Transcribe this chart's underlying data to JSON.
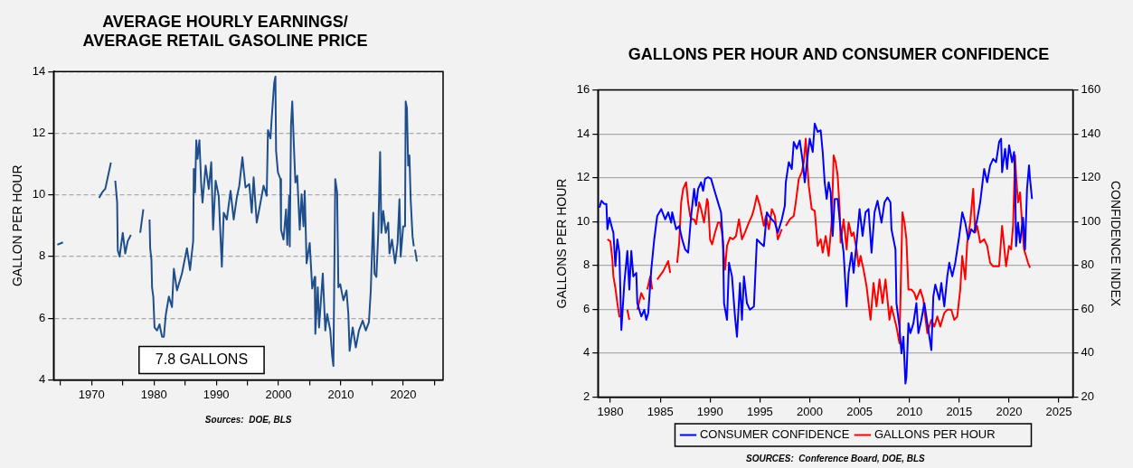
{
  "chart_data": [
    {
      "type": "line",
      "title": "AVERAGE HOURLY EARNINGS/\nAVERAGE RETAIL GASOLINE PRICE",
      "ylabel": "GALLON PER HOUR",
      "color": "#1f4e8c",
      "x": [
        1964.5,
        1965.4,
        1968,
        1971.2,
        1971.7,
        1972.2,
        1973,
        1973.1,
        1973.4,
        1973.8,
        1974.1,
        1974.2,
        1974.5,
        1975,
        1975.4,
        1975.8,
        1976.3,
        1977,
        1977.8,
        1978.3,
        1978.8,
        1979.3,
        1979.4,
        1979.6,
        1979.7,
        1979.9,
        1980.1,
        1980.5,
        1980.9,
        1981.3,
        1981.6,
        1981.9,
        1982.4,
        1982.9,
        1983.2,
        1983.7,
        1984.5,
        1985.3,
        1985.8,
        1986,
        1986.3,
        1986.4,
        1986.6,
        1986.8,
        1987,
        1987.3,
        1987.6,
        1987.8,
        1988.3,
        1988.8,
        1989.2,
        1989.5,
        1989.9,
        1990.4,
        1990.9,
        1991.2,
        1991.7,
        1992.3,
        1992.8,
        1993.3,
        1993.7,
        1994.2,
        1994.7,
        1995.3,
        1995.7,
        1996,
        1996.5,
        1997,
        1997.6,
        1998.1,
        1998.3,
        1998.7,
        1998.9,
        1999.3,
        1999.5,
        1999.6,
        1999.9,
        2000.3,
        2000.4,
        2000.8,
        2001.2,
        2001.4,
        2001.7,
        2001.8,
        2002,
        2002.2,
        2002.5,
        2002.7,
        2003,
        2003.4,
        2003.7,
        2004,
        2004.2,
        2004.5,
        2005,
        2005.4,
        2005.8,
        2005.9,
        2006.3,
        2006.5,
        2007.1,
        2007.5,
        2007.8,
        2008.3,
        2008.6,
        2008.8,
        2009.1,
        2009.4,
        2009.6,
        2009.9,
        2010.4,
        2010.9,
        2011.2,
        2011.4,
        2011.9,
        2012.4,
        2012.9,
        2013.5,
        2014,
        2014.5,
        2014.8,
        2015.2,
        2015.4,
        2015.7,
        2016,
        2016.3,
        2016.5,
        2016.8,
        2017.2,
        2017.6,
        2017.8,
        2018.2,
        2018.7,
        2019.1,
        2019.4,
        2019.6,
        2020,
        2020.3,
        2020.4,
        2020.6,
        2020.8,
        2021,
        2021.2,
        2021.5,
        2021.7,
        2021.8,
        2021.9,
        2022.2
      ],
      "values": [
        8.38,
        8.46,
        null,
        9.9,
        10.08,
        10.2,
        10.95,
        11.05,
        null,
        10.46,
        9.75,
        8.2,
        8.0,
        8.77,
        8.1,
        8.5,
        8.7,
        null,
        8.77,
        9.53,
        null,
        9.2,
        8.27,
        7.9,
        7.0,
        6.7,
        5.7,
        5.6,
        5.8,
        5.4,
        5.4,
        6.1,
        6.7,
        6.36,
        7.6,
        6.9,
        7.45,
        8.27,
        7.56,
        7.95,
        8.5,
        10.84,
        10.08,
        11.77,
        11.17,
        11.77,
        10.3,
        9.75,
        10.95,
        10.19,
        11.06,
        8.87,
        10.46,
        9.97,
        7.67,
        9.42,
        9.2,
        10.13,
        9.2,
        9.91,
        10.3,
        11.22,
        10.24,
        10.35,
        9.42,
        10.57,
        9.1,
        9.64,
        10.3,
        9.97,
        12.1,
        11.83,
        12.48,
        13.63,
        13.84,
        11.44,
        10.73,
        10.51,
        8.87,
        8.55,
        9.53,
        8.38,
        9.97,
        8.33,
        12.26,
        13.03,
        11.39,
        10.4,
        10.62,
        8.87,
        10.02,
        8.98,
        10.13,
        7.78,
        8.44,
        6.96,
        7.34,
        5.49,
        7.0,
        5.7,
        7.45,
        5.6,
        6.14,
        5.6,
        4.78,
        4.45,
        10.51,
        10.08,
        7.0,
        7.1,
        6.58,
        6.9,
        6.14,
        4.94,
        5.7,
        5.05,
        5.6,
        5.92,
        5.6,
        5.87,
        6.9,
        9.42,
        7.45,
        7.34,
        8.77,
        11.39,
        8.77,
        9.48,
        8.77,
        9.1,
        8.1,
        8.55,
        7.78,
        8.44,
        9.86,
        8.0,
        8.98,
        8.98,
        13.03,
        12.81,
        10.95,
        11.28,
        9.86,
        8.66,
        8.33,
        null,
        8.22,
        7.84
      ],
      "xlim": [
        1963.9,
        2026.4
      ],
      "xticks": [
        {
          "value": 1965,
          "label": null
        },
        1970,
        {
          "value": 1975,
          "label": null
        },
        1980,
        {
          "value": 1985,
          "label": null
        },
        1990,
        {
          "value": 1995,
          "label": null
        },
        2000,
        {
          "value": 2005,
          "label": null
        },
        2010,
        {
          "value": 2015,
          "label": null
        },
        2020,
        {
          "value": 2025,
          "label": null
        }
      ],
      "ylim": [
        4,
        14
      ],
      "yticks": [
        4,
        6,
        8,
        10,
        12,
        14
      ],
      "grid": "y",
      "annotations": [
        "7.8 GALLONS",
        "Sources:  DOE, BLS"
      ]
    },
    {
      "type": "line",
      "title": "GALLONS PER HOUR AND CONSUMER CONFIDENCE",
      "ylabel": "GALLONS PER HOUR",
      "y2label": "CONFIDENCE INDEX",
      "legend": "bottom",
      "grid": "y",
      "series": [
        {
          "name": "CONSUMER CONFIDENCE",
          "color": "#0000ff",
          "axis": "y2",
          "x": [
            1978.9,
            1979.1,
            1979.4,
            1979.6,
            1979.7,
            1979.9,
            1980.2,
            1980.3,
            1980.5,
            1980.7,
            1980.9,
            1981.1,
            1981.4,
            1981.7,
            1981.9,
            1982.1,
            1982.3,
            1982.6,
            1982.7,
            1983.1,
            1983.4,
            1983.6,
            1983.8,
            1984.1,
            1984.4,
            1984.7,
            1985.1,
            1985.5,
            1985.8,
            1986.1,
            1986.2,
            1986.6,
            1986.9,
            1987.2,
            1987.5,
            1987.8,
            1988.1,
            1988.4,
            1988.6,
            1988.8,
            1989.1,
            1989.3,
            1989.5,
            1989.8,
            1990.1,
            1990.5,
            1990.8,
            1991.1,
            1991.3,
            1991.4,
            1991.7,
            1991.9,
            1992.2,
            1992.5,
            1992.7,
            1993,
            1993.2,
            1993.4,
            1993.7,
            1994,
            1994.4,
            1994.7,
            1995,
            1995.4,
            1995.7,
            1995.9,
            1996.2,
            1996.5,
            1996.8,
            1997.2,
            1997.5,
            1997.6,
            1997.9,
            1998.2,
            1998.4,
            1998.7,
            1999,
            1999.3,
            1999.5,
            1999.8,
            2000,
            2000.3,
            2000.5,
            2000.8,
            2001.1,
            2001.3,
            2001.5,
            2001.7,
            2001.9,
            2002.1,
            2002.3,
            2002.5,
            2002.8,
            2003.1,
            2003.4,
            2003.7,
            2003.9,
            2004.2,
            2004.4,
            2004.7,
            2005,
            2005.3,
            2005.6,
            2005.9,
            2006.2,
            2006.5,
            2006.8,
            2007.2,
            2007.5,
            2007.8,
            2008.1,
            2008.2,
            2008.6,
            2008.7,
            2009,
            2009.2,
            2009.4,
            2009.6,
            2009.7,
            2009.9,
            2010.1,
            2010.4,
            2010.7,
            2010.9,
            2011.2,
            2011.5,
            2011.8,
            2012.2,
            2012.4,
            2012.6,
            2013,
            2013.2,
            2013.5,
            2013.8,
            2014,
            2014.3,
            2014.6,
            2015,
            2015.3,
            2015.6,
            2015.9,
            2016.2,
            2016.5,
            2016.8,
            2017.1,
            2017.5,
            2017.8,
            2018.1,
            2018.4,
            2018.7,
            2019,
            2019.2,
            2019.3,
            2019.6,
            2019.8,
            2020,
            2020.3,
            2020.5,
            2020.6,
            2020.7,
            2020.9,
            2021.1,
            2021.4,
            2021.6,
            2021.8,
            2022,
            2022.1,
            2022.3
          ],
          "values": [
            106.4,
            109.5,
            108,
            108,
            96.5,
            101.7,
            96.5,
            95,
            79.7,
            91.9,
            85.8,
            50.6,
            72,
            86.6,
            69,
            86.6,
            75,
            76.6,
            62.8,
            56.7,
            59.8,
            55.2,
            58.3,
            78,
            91.9,
            102.6,
            105.7,
            101,
            104.2,
            99.5,
            104.2,
            96.5,
            98,
            91.9,
            87.3,
            85.8,
            102.6,
            114.9,
            107.2,
            114.9,
            117.9,
            114,
            119.5,
            120.2,
            119.5,
            113.3,
            108.7,
            104.2,
            90.4,
            62.8,
            55.2,
            81.2,
            75,
            56.7,
            47.5,
            72,
            55.2,
            75,
            62.8,
            59.8,
            61.3,
            91.9,
            90.4,
            88.8,
            104.2,
            102.6,
            101,
            99.5,
            95,
            101,
            107.2,
            117.9,
            127.1,
            124,
            136.3,
            133.2,
            137,
            127.1,
            117.9,
            130.2,
            137.8,
            131.7,
            144.7,
            140.9,
            141.6,
            131.7,
            117.9,
            110.3,
            117.9,
            113.3,
            93.4,
            110.3,
            110.3,
            96.5,
            85.8,
            61.3,
            76.6,
            85.8,
            76.6,
            90.4,
            105.7,
            93.4,
            104.2,
            105.7,
            85.8,
            104.2,
            109.5,
            99.5,
            108.7,
            111,
            108.7,
            96.5,
            87.3,
            62.8,
            52.1,
            39.9,
            47.5,
            26.1,
            29.2,
            53.6,
            49.1,
            53.6,
            62.8,
            49.1,
            55.2,
            62.8,
            53.6,
            41.4,
            65.9,
            71.3,
            64.4,
            72,
            61.3,
            75,
            81.2,
            75,
            81.2,
            93.4,
            104.2,
            99.5,
            91.9,
            96.5,
            95,
            101,
            108.7,
            124,
            117.9,
            125.6,
            128.6,
            127.1,
            136.3,
            137.8,
            122.5,
            133.2,
            124,
            134.8,
            127.1,
            131.7,
            121,
            88.8,
            99.5,
            90.4,
            101.7,
            87.3,
            114.9,
            125.6,
            119.5,
            110.3
          ]
        },
        {
          "name": "GALLONS PER HOUR",
          "color": "#ff0000",
          "axis": "y",
          "x": [
            1979.7,
            1980,
            1980.2,
            1980.3,
            1980.5,
            1980.7,
            1980.9,
            1981.1,
            1981.4,
            1981.7,
            1981.9,
            1982.3,
            1982.7,
            1983.1,
            1983.4,
            1983.55,
            1983.7,
            1984,
            1984.2,
            1984.45,
            1984.7,
            1985.3,
            1985.8,
            1986,
            1986.35,
            1986.7,
            1986.9,
            1987.1,
            1987.3,
            1987.6,
            1987.8,
            1988,
            1988.2,
            1988.4,
            1988.6,
            1988.9,
            1989.1,
            1989.4,
            1989.7,
            1989.8,
            1990,
            1990.2,
            1990.5,
            1990.8,
            1991,
            1991.2,
            1991.5,
            1991.7,
            1992,
            1992.3,
            1992.6,
            1992.9,
            1993.2,
            1993.5,
            1993.9,
            1994.2,
            1994.4,
            1994.7,
            1995,
            1995.4,
            1995.6,
            1995.9,
            1996.2,
            1996.5,
            1996.8,
            1997.2,
            1997.4,
            1997.6,
            1998,
            1998.4,
            1998.6,
            1998.9,
            1999.2,
            1999.4,
            1999.6,
            1999.7,
            1999.9,
            2000.2,
            2000.5,
            2000.8,
            2001.1,
            2001.3,
            2001.6,
            2001.9,
            2002.2,
            2002.4,
            2002.6,
            2002.8,
            2003,
            2003.1,
            2003.4,
            2003.7,
            2003.9,
            2004.2,
            2004.4,
            2004.7,
            2004.9,
            2005.1,
            2005.4,
            2005.7,
            2006.1,
            2006.4,
            2006.7,
            2007,
            2007.3,
            2007.6,
            2008,
            2008.2,
            2008.7,
            2009,
            2009.3,
            2009.5,
            2009.7,
            2009.9,
            2010.2,
            2010.5,
            2010.7,
            2011.1,
            2011.4,
            2011.5,
            2011.8,
            2012.2,
            2012.5,
            2012.8,
            2013.1,
            2013.5,
            2013.8,
            2014.2,
            2014.5,
            2014.8,
            2015.1,
            2015.3,
            2015.6,
            2015.8,
            2016.1,
            2016.4,
            2016.6,
            2016.8,
            2017.1,
            2017.5,
            2017.8,
            2018.1,
            2018.4,
            2019,
            2019.3,
            2019.5,
            2019.7,
            2020,
            2020.2,
            2020.4,
            2020.6,
            2020.7,
            2020.9,
            2021.1,
            2021.3,
            2021.5,
            2021.6,
            2021.7,
            2021.9,
            2022.1
          ],
          "values": [
            9.19,
            9.1,
            8.27,
            7.5,
            6.97,
            6.28,
            5.67,
            5.67,
            null,
            5.98,
            5.52,
            null,
            5.98,
            6.74,
            6.44,
            null,
            6.9,
            7.5,
            6.9,
            null,
            7.36,
            7.74,
            8.2,
            7.66,
            null,
            8.12,
            9.04,
            10.87,
            11.49,
            11.79,
            10.87,
            10.26,
            10.1,
            10.1,
            9.88,
            10.87,
            10.57,
            9.96,
            11.03,
            10.87,
            9.19,
            8.96,
            9.5,
            9.96,
            9.96,
            9.5,
            7.81,
            8.89,
            9.27,
            9.19,
            9.34,
            10.1,
            9.19,
            9.5,
            9.96,
            10.26,
            10.57,
            11.18,
            10.72,
            9.8,
            10.26,
            9.65,
            10.57,
            10.26,
            9.19,
            9.65,
            null,
            9.8,
            10.1,
            10.26,
            10.87,
            11.94,
            12.25,
            12.71,
            13.78,
            13.02,
            11.64,
            10.57,
            10.49,
            8.89,
            9.19,
            8.58,
            9.34,
            8.43,
            9.96,
            13.02,
            12.71,
            12.1,
            10.57,
            9.04,
            10.1,
            8.73,
            9.96,
            9.34,
            9.5,
            8.73,
            7.96,
            8.43,
            7.81,
            7.05,
            5.52,
            7.2,
            6.13,
            7.36,
            6.28,
            7.36,
            5.52,
            6.13,
            5.21,
            4.45,
            10.42,
            9.96,
            9.19,
            6.9,
            6.9,
            6.74,
            6.44,
            6.9,
            6.44,
            5.98,
            4.91,
            5.52,
            5.21,
            5.67,
            5.21,
            5.83,
            5.98,
            5.98,
            5.52,
            5.67,
            6.9,
            8.43,
            7.36,
            9.04,
            9.96,
            11.49,
            9.5,
            9.8,
            9.04,
            9.19,
            8.89,
            8.12,
            7.96,
            7.96,
            9.8,
            8.89,
            7.96,
            8.89,
            8.73,
            9.8,
            13.02,
            12.1,
            10.87,
            11.33,
            9.96,
            8.73,
            8.58,
            8.43,
            8.12,
            7.89
          ]
        }
      ],
      "xlim": [
        1978.75,
        2026.4
      ],
      "xticks": [
        1980,
        1985,
        1990,
        1995,
        2000,
        2005,
        2010,
        2015,
        2020,
        2025
      ],
      "ylim": [
        2,
        16
      ],
      "yticks": [
        2,
        4,
        6,
        8,
        10,
        12,
        14,
        16
      ],
      "y2lim": [
        20,
        160
      ],
      "y2ticks": [
        20,
        40,
        60,
        80,
        100,
        120,
        140,
        160
      ],
      "annotations": [
        "SOURCES:  Conference Board, DOE, BLS"
      ]
    }
  ]
}
